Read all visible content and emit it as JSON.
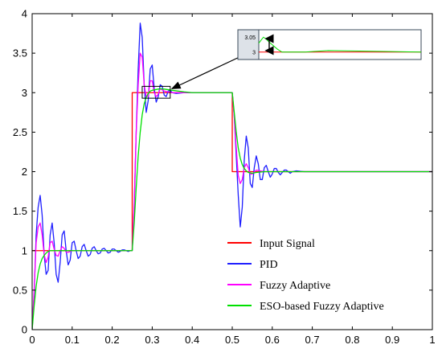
{
  "chart_data": {
    "type": "line",
    "title": "",
    "xlabel": "",
    "ylabel": "",
    "xlim": [
      0,
      1
    ],
    "ylim": [
      0,
      4
    ],
    "xticks": [
      "0",
      "0.1",
      "0.2",
      "0.3",
      "0.4",
      "0.5",
      "0.6",
      "0.7",
      "0.8",
      "0.9",
      "1"
    ],
    "yticks": [
      "0",
      "0.5",
      "1",
      "1.5",
      "2",
      "2.5",
      "3",
      "3.5",
      "4"
    ],
    "grid": false,
    "legend_position": "bottom-right",
    "series": [
      {
        "name": "Input Signal",
        "color": "#ff0000",
        "x": [
          0,
          0.25,
          0.25,
          0.5,
          0.5,
          1.0
        ],
        "y": [
          1,
          1,
          3,
          3,
          2,
          2
        ]
      },
      {
        "name": "PID",
        "color": "#1f1fff",
        "x": [
          0,
          0.005,
          0.01,
          0.015,
          0.02,
          0.025,
          0.03,
          0.035,
          0.04,
          0.045,
          0.05,
          0.055,
          0.06,
          0.065,
          0.07,
          0.075,
          0.08,
          0.085,
          0.09,
          0.095,
          0.1,
          0.105,
          0.11,
          0.115,
          0.12,
          0.125,
          0.13,
          0.135,
          0.14,
          0.145,
          0.15,
          0.155,
          0.16,
          0.165,
          0.17,
          0.175,
          0.18,
          0.185,
          0.19,
          0.195,
          0.2,
          0.205,
          0.21,
          0.215,
          0.22,
          0.225,
          0.23,
          0.235,
          0.24,
          0.245,
          0.25,
          0.255,
          0.26,
          0.265,
          0.27,
          0.275,
          0.28,
          0.285,
          0.29,
          0.295,
          0.3,
          0.305,
          0.31,
          0.315,
          0.32,
          0.325,
          0.33,
          0.335,
          0.34,
          0.345,
          0.35,
          0.36,
          0.38,
          0.4,
          0.45,
          0.5,
          0.505,
          0.51,
          0.515,
          0.52,
          0.525,
          0.53,
          0.535,
          0.54,
          0.545,
          0.55,
          0.555,
          0.56,
          0.565,
          0.57,
          0.575,
          0.58,
          0.585,
          0.59,
          0.595,
          0.6,
          0.605,
          0.61,
          0.615,
          0.62,
          0.625,
          0.63,
          0.635,
          0.64,
          0.645,
          0.65,
          0.66,
          0.68,
          0.7,
          0.8,
          0.9,
          1.0
        ],
        "y": [
          0,
          0.45,
          1.2,
          1.55,
          1.7,
          1.45,
          0.95,
          0.7,
          0.75,
          1.2,
          1.35,
          1.1,
          0.7,
          0.6,
          0.85,
          1.2,
          1.25,
          1.0,
          0.82,
          0.88,
          1.1,
          1.12,
          1.0,
          0.9,
          0.93,
          1.05,
          1.08,
          1.0,
          0.93,
          0.95,
          1.03,
          1.05,
          1.0,
          0.96,
          0.97,
          1.02,
          1.03,
          1.0,
          0.97,
          0.98,
          1.02,
          1.02,
          1.0,
          0.98,
          0.99,
          1.01,
          1.01,
          1.0,
          0.99,
          1.0,
          1.0,
          1.55,
          2.5,
          3.3,
          3.88,
          3.7,
          3.1,
          2.75,
          2.9,
          3.3,
          3.35,
          3.05,
          2.88,
          2.95,
          3.1,
          3.08,
          2.97,
          2.95,
          3.02,
          3.03,
          3.0,
          2.99,
          3.0,
          3.0,
          3.0,
          3.0,
          2.7,
          2.2,
          1.7,
          1.3,
          1.55,
          2.15,
          2.45,
          2.3,
          1.85,
          1.8,
          2.05,
          2.2,
          2.1,
          1.9,
          1.9,
          2.05,
          2.08,
          2.0,
          1.93,
          1.97,
          2.04,
          2.04,
          1.99,
          1.96,
          1.99,
          2.02,
          2.02,
          2.0,
          1.98,
          2.0,
          2.01,
          2.0,
          2.0,
          2.0,
          2.0,
          2.0
        ]
      },
      {
        "name": "Fuzzy Adaptive",
        "color": "#ff00ff",
        "x": [
          0,
          0.005,
          0.01,
          0.015,
          0.02,
          0.025,
          0.03,
          0.035,
          0.04,
          0.045,
          0.05,
          0.055,
          0.06,
          0.065,
          0.07,
          0.075,
          0.08,
          0.085,
          0.09,
          0.1,
          0.12,
          0.15,
          0.2,
          0.25,
          0.255,
          0.26,
          0.265,
          0.27,
          0.275,
          0.28,
          0.285,
          0.29,
          0.295,
          0.3,
          0.305,
          0.31,
          0.315,
          0.32,
          0.33,
          0.35,
          0.4,
          0.5,
          0.505,
          0.51,
          0.515,
          0.52,
          0.525,
          0.53,
          0.535,
          0.54,
          0.545,
          0.55,
          0.56,
          0.58,
          0.6,
          0.7,
          0.8,
          1.0
        ],
        "y": [
          0,
          0.5,
          1.1,
          1.3,
          1.35,
          1.2,
          0.95,
          0.85,
          0.92,
          1.1,
          1.12,
          1.02,
          0.94,
          0.93,
          1.0,
          1.05,
          1.03,
          0.98,
          0.98,
          1.0,
          1.0,
          1.0,
          1.0,
          1.0,
          1.6,
          2.5,
          3.1,
          3.5,
          3.45,
          3.1,
          2.95,
          2.95,
          3.15,
          3.15,
          3.0,
          2.95,
          2.98,
          3.05,
          3.02,
          3.0,
          3.0,
          3.0,
          2.7,
          2.3,
          1.95,
          1.85,
          1.9,
          2.05,
          2.1,
          2.05,
          1.97,
          1.97,
          2.02,
          2.0,
          2.0,
          2.0,
          2.0,
          2.0
        ]
      },
      {
        "name": "ESO-based Fuzzy Adaptive",
        "color": "#00e000",
        "x": [
          0,
          0.005,
          0.01,
          0.015,
          0.02,
          0.025,
          0.03,
          0.035,
          0.04,
          0.045,
          0.05,
          0.06,
          0.07,
          0.08,
          0.1,
          0.15,
          0.2,
          0.25,
          0.255,
          0.26,
          0.265,
          0.27,
          0.275,
          0.28,
          0.285,
          0.29,
          0.295,
          0.3,
          0.31,
          0.32,
          0.33,
          0.35,
          0.38,
          0.4,
          0.45,
          0.5,
          0.505,
          0.51,
          0.515,
          0.52,
          0.525,
          0.53,
          0.535,
          0.54,
          0.55,
          0.56,
          0.58,
          0.6,
          0.7,
          0.8,
          1.0
        ],
        "y": [
          0,
          0.3,
          0.55,
          0.72,
          0.83,
          0.9,
          0.94,
          0.97,
          0.99,
          1.0,
          1.0,
          1.0,
          1.0,
          1.0,
          1.0,
          1.0,
          1.0,
          1.0,
          1.35,
          1.8,
          2.2,
          2.5,
          2.72,
          2.86,
          2.94,
          2.99,
          3.02,
          3.03,
          3.04,
          3.05,
          3.045,
          3.03,
          3.01,
          3.0,
          3.0,
          3.0,
          2.75,
          2.5,
          2.3,
          2.17,
          2.09,
          2.04,
          2.01,
          1.99,
          1.98,
          1.99,
          2.0,
          2.0,
          2.0,
          2.0,
          2.0
        ]
      }
    ],
    "zoom_box": {
      "xlim": [
        0.275,
        0.345
      ],
      "ylim": [
        2.93,
        3.08
      ]
    },
    "inset": {
      "yticks": [
        "3.05",
        "3"
      ],
      "xlim": [
        0.3,
        1.0
      ],
      "ylim": [
        2.975,
        3.075
      ],
      "annotation": "double-headed arrow marking the 3.05 overshoot above 3"
    }
  }
}
